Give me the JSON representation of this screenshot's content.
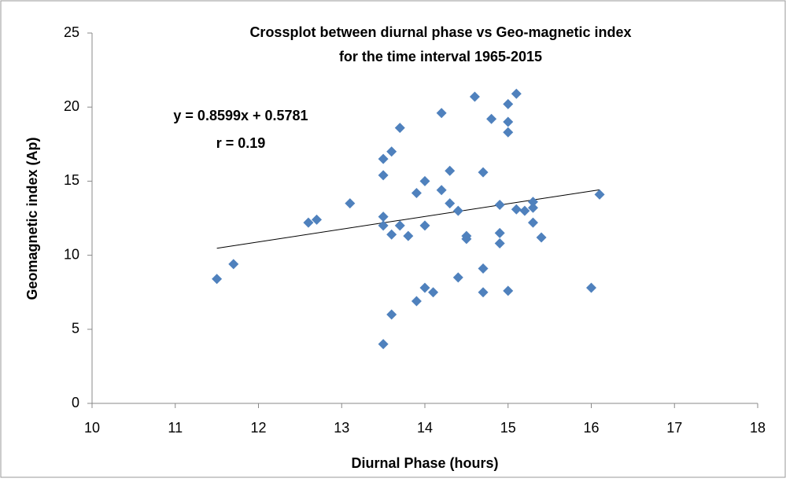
{
  "chart_data": {
    "type": "scatter",
    "title": "Crossplot between diurnal phase vs Geo-magnetic index",
    "subtitle": "for the time interval 1965-2015",
    "xlabel": "Diurnal Phase (hours)",
    "ylabel": "Geomagnetic index (Ap)",
    "annotations": [
      "y = 0.8599x + 0.5781",
      "r = 0.19"
    ],
    "color": "#4f81bd",
    "grid": false,
    "xlim": [
      10,
      18
    ],
    "xticks": [
      10,
      11,
      12,
      13,
      14,
      15,
      16,
      17,
      18
    ],
    "ylim": [
      0,
      25
    ],
    "yticks": [
      0,
      5,
      10,
      15,
      20,
      25
    ],
    "x": [
      11.5,
      11.7,
      12.6,
      12.7,
      13.1,
      13.5,
      13.5,
      13.5,
      13.5,
      13.5,
      13.6,
      13.6,
      13.6,
      13.7,
      13.7,
      13.8,
      13.9,
      13.9,
      14.0,
      14.0,
      14.0,
      14.1,
      14.2,
      14.2,
      14.3,
      14.3,
      14.4,
      14.4,
      14.5,
      14.5,
      14.6,
      14.7,
      14.7,
      14.7,
      14.8,
      14.9,
      14.9,
      14.9,
      15.0,
      15.0,
      15.0,
      15.0,
      15.1,
      15.1,
      15.2,
      15.3,
      15.3,
      15.3,
      15.4,
      16.0,
      16.1
    ],
    "values": [
      8.4,
      9.4,
      12.2,
      12.4,
      13.5,
      16.5,
      15.4,
      12.6,
      12.0,
      4.0,
      17.0,
      11.4,
      6.0,
      18.6,
      12.0,
      11.3,
      14.2,
      6.9,
      15.0,
      12.0,
      7.8,
      7.5,
      19.6,
      14.4,
      15.7,
      13.5,
      13.0,
      8.5,
      11.3,
      11.1,
      20.7,
      15.6,
      9.1,
      7.5,
      19.2,
      13.4,
      11.5,
      10.8,
      20.2,
      19.0,
      18.3,
      7.6,
      20.9,
      13.1,
      13.0,
      13.6,
      13.2,
      12.2,
      11.2,
      7.8,
      14.1
    ],
    "trendline": {
      "x": [
        11.5,
        16.1
      ],
      "values": [
        10.47,
        14.42
      ]
    }
  }
}
